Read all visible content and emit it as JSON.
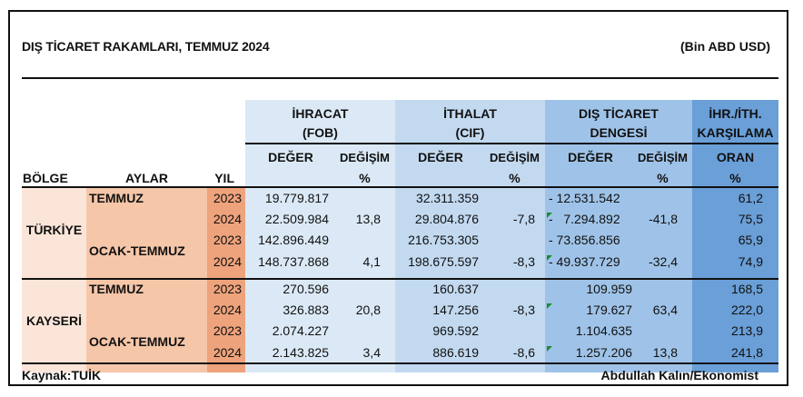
{
  "title": "DIŞ TİCARET RAKAMLARI, TEMMUZ 2024",
  "unit": "(Bin ABD USD)",
  "headers": {
    "bolge": "BÖLGE",
    "aylar": "AYLAR",
    "yil": "YIL",
    "ihracat": {
      "line1": "İHRACAT",
      "line2": "(FOB)"
    },
    "ithalat": {
      "line1": "İTHALAT",
      "line2": "(CIF)"
    },
    "denge": {
      "line1": "DIŞ TİCARET",
      "line2": "DENGESİ"
    },
    "oran": {
      "line1": "İHR./İTH.",
      "line2": "KARŞILAMA",
      "sub1": "ORAN",
      "sub2": "%"
    },
    "deger": "DEĞER",
    "degisim": "DEĞİŞİM",
    "pct": "%"
  },
  "groups": [
    {
      "region": "TÜRKİYE",
      "periods": [
        {
          "label": "TEMMUZ",
          "rows": [
            {
              "yil": "2023",
              "ihr": "19.779.817",
              "ihr_d": "",
              "ith": "32.311.359",
              "ith_d": "",
              "den": "- 12.531.542",
              "den_d": "",
              "oran": "61,2"
            },
            {
              "yil": "2024",
              "ihr": "22.509.984",
              "ihr_d": "13,8",
              "ith": "29.804.876",
              "ith_d": "-7,8",
              "den": "-   7.294.892",
              "den_d": "-41,8",
              "oran": "75,5"
            }
          ]
        },
        {
          "label": "OCAK-TEMMUZ",
          "rows": [
            {
              "yil": "2023",
              "ihr": "142.896.449",
              "ihr_d": "",
              "ith": "216.753.305",
              "ith_d": "",
              "den": "- 73.856.856",
              "den_d": "",
              "oran": "65,9"
            },
            {
              "yil": "2024",
              "ihr": "148.737.868",
              "ihr_d": "4,1",
              "ith": "198.675.597",
              "ith_d": "-8,3",
              "den": "- 49.937.729",
              "den_d": "-32,4",
              "oran": "74,9"
            }
          ]
        }
      ]
    },
    {
      "region": "KAYSERİ",
      "periods": [
        {
          "label": "TEMMUZ",
          "rows": [
            {
              "yil": "2023",
              "ihr": "270.596",
              "ihr_d": "",
              "ith": "160.637",
              "ith_d": "",
              "den": "109.959",
              "den_d": "",
              "oran": "168,5"
            },
            {
              "yil": "2024",
              "ihr": "326.883",
              "ihr_d": "20,8",
              "ith": "147.256",
              "ith_d": "-8,3",
              "den": "179.627",
              "den_d": "63,4",
              "oran": "222,0"
            }
          ]
        },
        {
          "label": "OCAK-TEMMUZ",
          "rows": [
            {
              "yil": "2023",
              "ihr": "2.074.227",
              "ihr_d": "",
              "ith": "969.592",
              "ith_d": "",
              "den": "1.104.635",
              "den_d": "",
              "oran": "213,9"
            },
            {
              "yil": "2024",
              "ihr": "2.143.825",
              "ihr_d": "3,4",
              "ith": "886.619",
              "ith_d": "-8,6",
              "den": "1.257.206",
              "den_d": "13,8",
              "oran": "241,8"
            }
          ]
        }
      ]
    }
  ],
  "footer": {
    "source": "Kaynak:TUİK",
    "author": "Abdullah Kalın/Ekonomist"
  },
  "colors": {
    "bolge": "#fbe5d9",
    "aylar": "#f6c6a9",
    "yil": "#eea37c",
    "ihracat": "#dbe9f6",
    "ithalat": "#c2d9f0",
    "denge": "#9fc3e8",
    "oran": "#6a9fd8"
  }
}
